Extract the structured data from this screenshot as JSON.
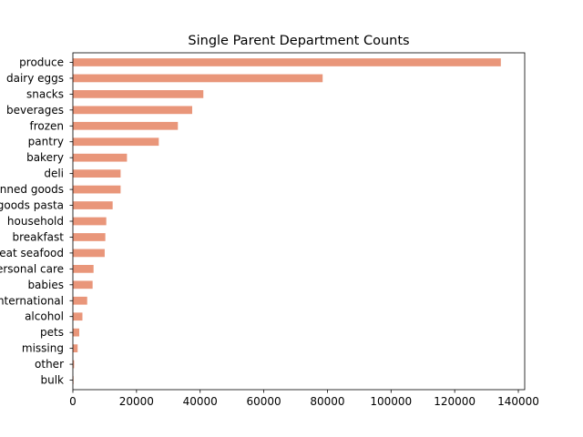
{
  "chart_data": {
    "type": "bar",
    "orientation": "horizontal",
    "title": "Single Parent Department Counts",
    "xlabel": "",
    "ylabel": "",
    "xlim": [
      0,
      142000
    ],
    "x_ticks": [
      0,
      20000,
      40000,
      60000,
      80000,
      100000,
      120000,
      140000
    ],
    "x_tick_labels": [
      "0",
      "20000",
      "40000",
      "60000",
      "80000",
      "100000",
      "120000",
      "140000"
    ],
    "grid": false,
    "bar_color": "#e9967a",
    "categories": [
      "produce",
      "dairy eggs",
      "snacks",
      "beverages",
      "frozen",
      "pantry",
      "bakery",
      "deli",
      "canned goods",
      "dry goods pasta",
      "household",
      "breakfast",
      "meat seafood",
      "personal care",
      "babies",
      "international",
      "alcohol",
      "pets",
      "missing",
      "other",
      "bulk"
    ],
    "values": [
      134500,
      78500,
      41000,
      37500,
      33000,
      27000,
      17000,
      15000,
      15000,
      12500,
      10500,
      10200,
      10000,
      6500,
      6200,
      4500,
      3000,
      2000,
      1500,
      400,
      200
    ]
  }
}
